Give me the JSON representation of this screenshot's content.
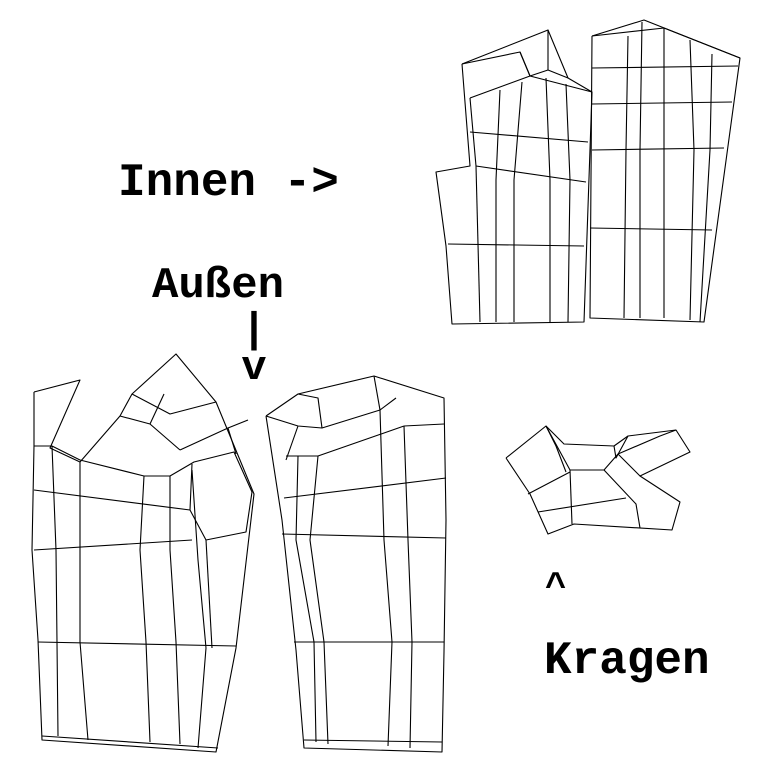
{
  "labels": {
    "innen": "Innen ->",
    "aussen": "Außen",
    "aussen_arrow": "|\nv",
    "kragen_arrow": "^",
    "kragen": "Kragen"
  },
  "colors": {
    "background": "#ffffff",
    "lines": "#000000"
  }
}
